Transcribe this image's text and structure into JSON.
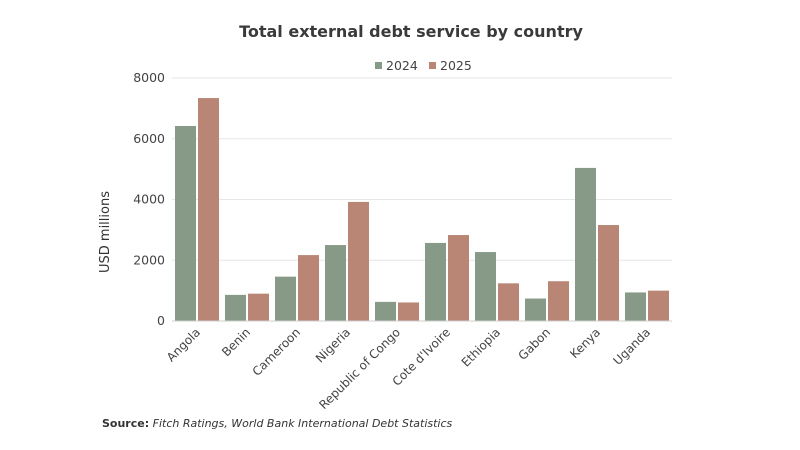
{
  "chart_data": {
    "type": "bar",
    "title": "Total external debt service by country",
    "ylabel": "USD millions",
    "xlabel": "",
    "ylim": [
      0,
      8000
    ],
    "yticks": [
      0,
      2000,
      4000,
      6000,
      8000
    ],
    "grid": true,
    "legend_position": "top-center",
    "categories": [
      "Angola",
      "Benin",
      "Cameroon",
      "Nigeria",
      "Republic of Congo",
      "Cote d'Ivoire",
      "Ethiopia",
      "Gabon",
      "Kenya",
      "Uganda"
    ],
    "series": [
      {
        "name": "2024",
        "color": "#879a87",
        "values": [
          6420,
          860,
          1460,
          2500,
          630,
          2570,
          2270,
          740,
          5040,
          940
        ]
      },
      {
        "name": "2025",
        "color": "#b98676",
        "values": [
          7340,
          900,
          2170,
          3920,
          610,
          2830,
          1240,
          1310,
          3160,
          1000
        ]
      }
    ]
  },
  "source": {
    "label": "Source:",
    "text": "Fitch Ratings, World Bank International Debt Statistics"
  }
}
